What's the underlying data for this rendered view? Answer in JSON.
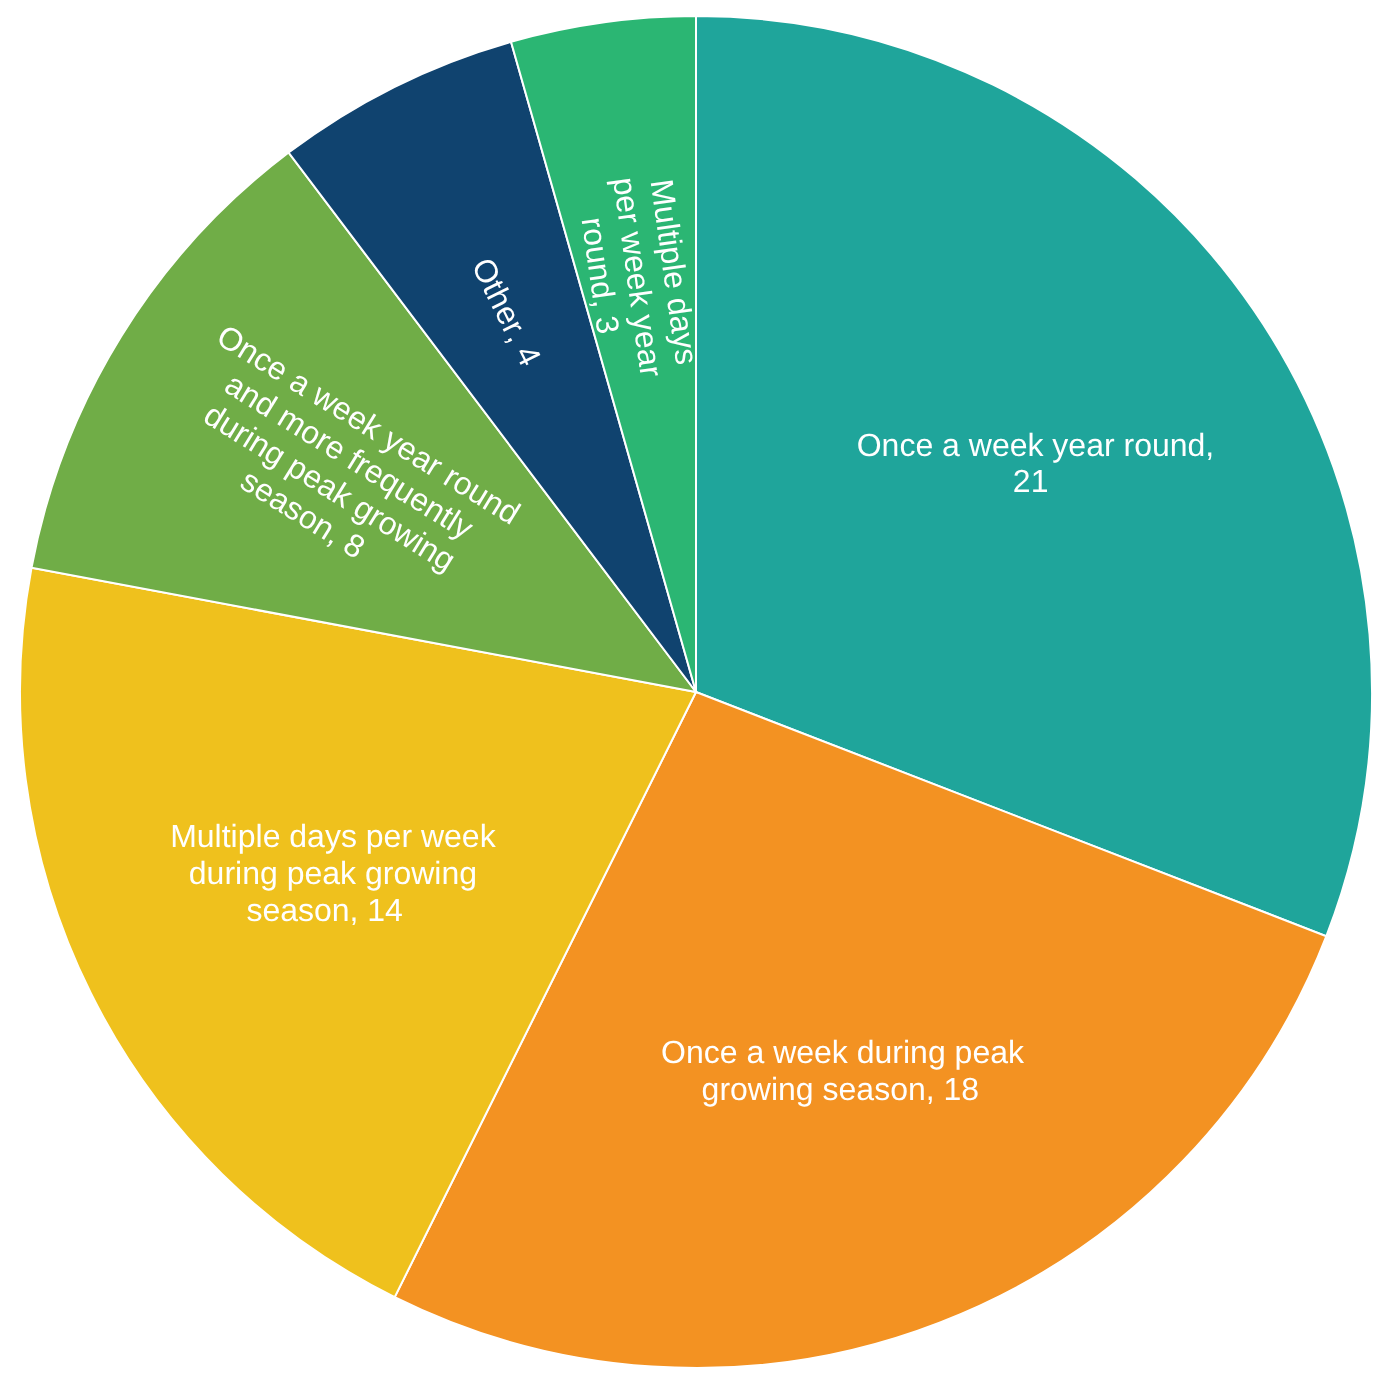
{
  "chart_data": {
    "type": "pie",
    "categories": [
      "Once a week year round",
      "Once a week during peak growing season",
      "Multiple days per week during peak growing season",
      "Once a week year round and more frequently during peak growing season",
      "Other",
      "Multiple days per week year round"
    ],
    "values": [
      21,
      18,
      14,
      8,
      4,
      3
    ],
    "value_labels": [
      ", 21",
      ", 18",
      ", 14",
      ", 8",
      ", 4",
      ", 3"
    ],
    "colors": [
      "#1fa59b",
      "#f39222",
      "#efc11d",
      "#70ad47",
      "#10436f",
      "#2bb673"
    ]
  }
}
